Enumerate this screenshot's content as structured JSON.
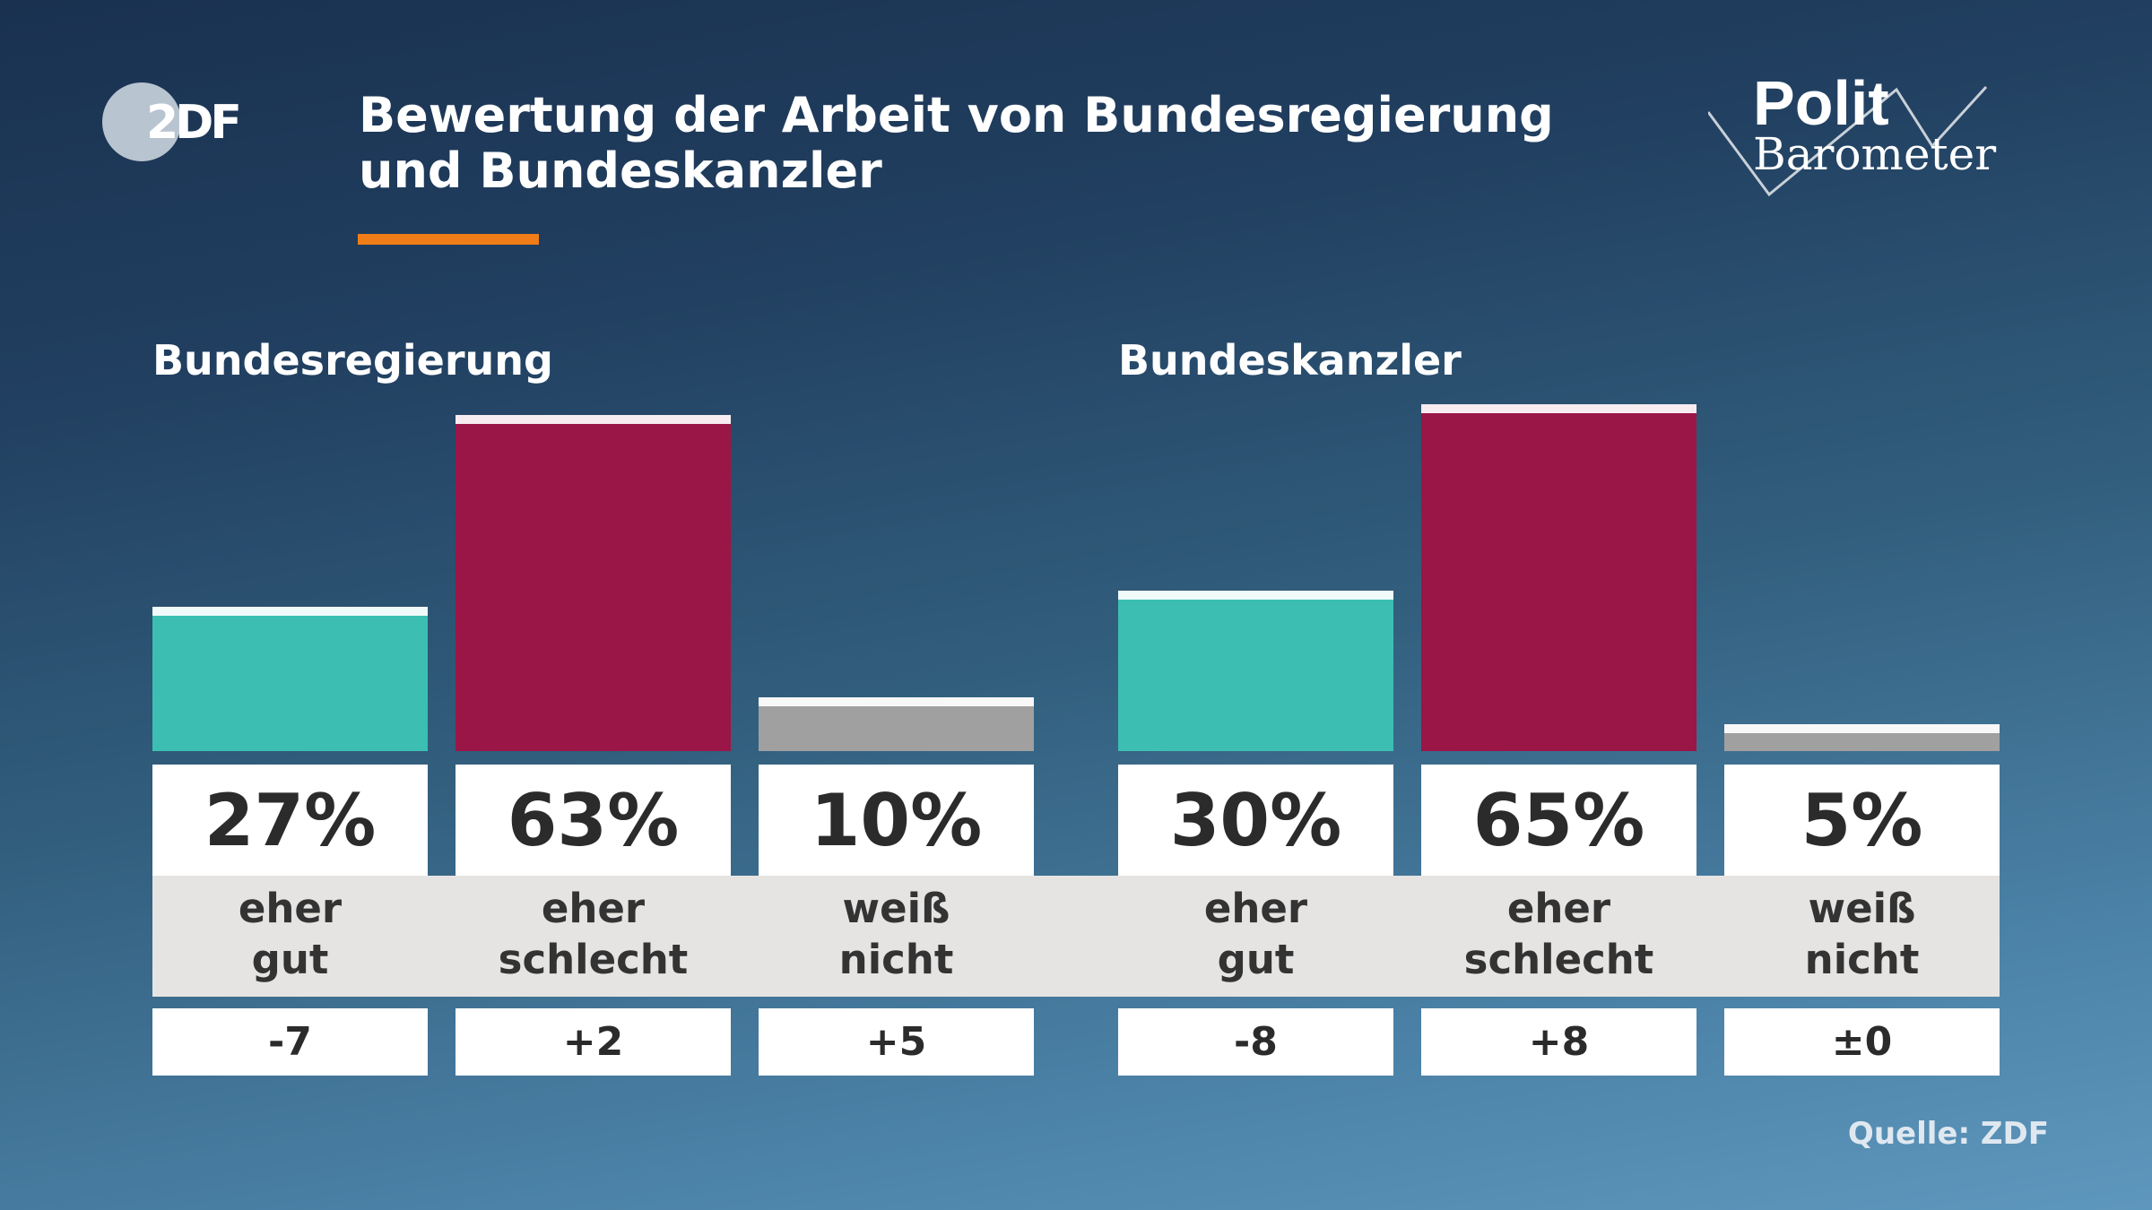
{
  "header": {
    "title": "Bewertung der Arbeit von Bundesregierung und Bundeskanzler",
    "logo_text": "ZDF",
    "brand_top": "Polit",
    "brand_bottom": "Barometer"
  },
  "source": "Quelle: ZDF",
  "colors": {
    "good": "#3cbfb2",
    "bad": "#9a1646",
    "unknown": "#a0a0a0",
    "accent": "#f07d17"
  },
  "chart_data": {
    "type": "bar",
    "title": "Bewertung der Arbeit von Bundesregierung und Bundeskanzler",
    "unit": "%",
    "ylim": [
      0,
      63
    ],
    "groups": [
      {
        "name": "Bundesregierung",
        "categories": [
          [
            "eher",
            "gut"
          ],
          [
            "eher",
            "schlecht"
          ],
          [
            "weiß",
            "nicht"
          ]
        ],
        "values": [
          27,
          63,
          10
        ],
        "value_labels": [
          "27%",
          "63%",
          "10%"
        ],
        "changes": [
          "-7",
          "+2",
          "+5"
        ]
      },
      {
        "name": "Bundeskanzler",
        "categories": [
          [
            "eher",
            "gut"
          ],
          [
            "eher",
            "schlecht"
          ],
          [
            "weiß",
            "nicht"
          ]
        ],
        "values": [
          30,
          65,
          5
        ],
        "value_labels": [
          "30%",
          "65%",
          "5%"
        ],
        "changes": [
          "-8",
          "+8",
          "±0"
        ]
      }
    ]
  }
}
